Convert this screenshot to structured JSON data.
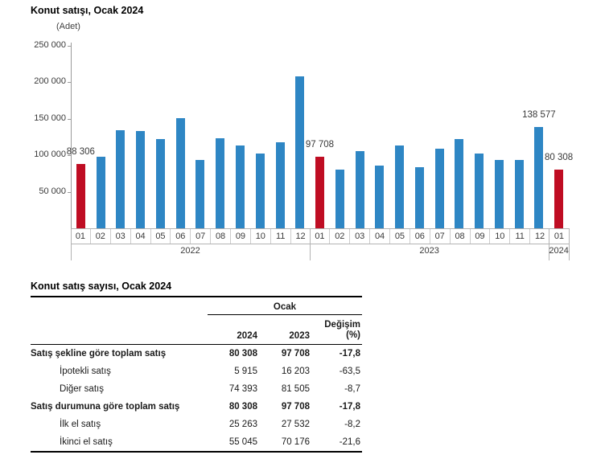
{
  "chart": {
    "title": "Konut satışı, Ocak 2024",
    "unit_label": "(Adet)"
  },
  "chart_data": {
    "type": "bar",
    "title": "Konut satışı, Ocak 2024",
    "ylabel": "(Adet)",
    "ylim": [
      0,
      250000
    ],
    "grid": false,
    "y_ticks": [
      250000,
      200000,
      150000,
      100000,
      50000
    ],
    "y_tick_labels": [
      "250 000",
      "200 000",
      "150 000",
      "100 000",
      "50 000"
    ],
    "categories": [
      "2022-01",
      "2022-02",
      "2022-03",
      "2022-04",
      "2022-05",
      "2022-06",
      "2022-07",
      "2022-08",
      "2022-09",
      "2022-10",
      "2022-11",
      "2022-12",
      "2023-01",
      "2023-02",
      "2023-03",
      "2023-04",
      "2023-05",
      "2023-06",
      "2023-07",
      "2023-08",
      "2023-09",
      "2023-10",
      "2023-11",
      "2023-12",
      "2024-01"
    ],
    "month_labels": [
      "01",
      "02",
      "03",
      "04",
      "05",
      "06",
      "07",
      "08",
      "09",
      "10",
      "11",
      "12",
      "01",
      "02",
      "03",
      "04",
      "05",
      "06",
      "07",
      "08",
      "09",
      "10",
      "11",
      "12",
      "01"
    ],
    "year_groups": [
      {
        "label": "2022",
        "months": 12
      },
      {
        "label": "2023",
        "months": 12
      },
      {
        "label": "2024",
        "months": 1
      }
    ],
    "values": [
      88306,
      97500,
      134000,
      133000,
      122500,
      150500,
      94000,
      123500,
      113500,
      102000,
      117800,
      208000,
      97708,
      80000,
      105500,
      85600,
      113900,
      83600,
      109500,
      122000,
      102600,
      93800,
      93500,
      138577,
      80308
    ],
    "highlighted_indices": [
      0,
      12,
      24
    ],
    "point_labels": {
      "0": "88 306",
      "12": "97 708",
      "23": "138 577",
      "24": "80 308"
    },
    "colors": {
      "bar_default": "#2e86c4",
      "bar_highlight": "#bf0d23"
    },
    "legend": null
  },
  "table": {
    "title": "Konut satış sayısı, Ocak 2024",
    "col_group_header": "Ocak",
    "col_headers": [
      "2024",
      "2023",
      "Değişim",
      "(%)"
    ],
    "rows": [
      {
        "label": "Satış şekline göre toplam satış",
        "bold": true,
        "indent": false,
        "values": [
          "80 308",
          "97 708",
          "-17,8"
        ]
      },
      {
        "label": "İpotekli satış",
        "bold": false,
        "indent": true,
        "values": [
          "5 915",
          "16 203",
          "-63,5"
        ]
      },
      {
        "label": "Diğer satış",
        "bold": false,
        "indent": true,
        "values": [
          "74 393",
          "81 505",
          "-8,7"
        ]
      },
      {
        "label": "Satış durumuna göre toplam satış",
        "bold": true,
        "indent": false,
        "values": [
          "80 308",
          "97 708",
          "-17,8"
        ]
      },
      {
        "label": "İlk el satış",
        "bold": false,
        "indent": true,
        "values": [
          "25 263",
          "27 532",
          "-8,2"
        ]
      },
      {
        "label": "İkinci el satış",
        "bold": false,
        "indent": true,
        "values": [
          "55 045",
          "70 176",
          "-21,6"
        ]
      }
    ]
  }
}
